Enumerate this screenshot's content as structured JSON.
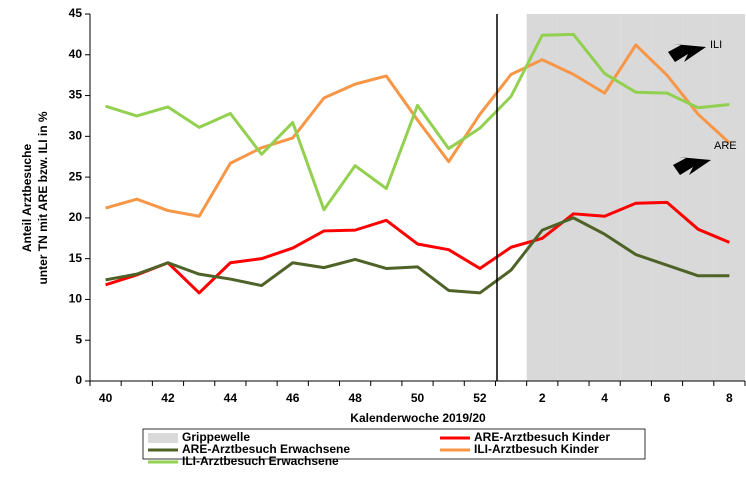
{
  "chart_data": {
    "type": "line",
    "y_label_lines": [
      "Anteil Arztbesuche",
      "unter TN mit ARE bzw. ILI in %"
    ],
    "x_label": "Kalenderwoche 2019/20",
    "categories": [
      40,
      null,
      42,
      null,
      44,
      null,
      46,
      null,
      48,
      null,
      50,
      null,
      52,
      null,
      2,
      null,
      4,
      null,
      6,
      null,
      8
    ],
    "ylim": [
      0,
      45
    ],
    "yticks": [
      0,
      5,
      10,
      15,
      20,
      25,
      30,
      35,
      40,
      45
    ],
    "grid": false,
    "legend": "bottom",
    "series": [
      {
        "name": "Grippewelle",
        "type": "area",
        "color": "#d9d9d9",
        "values": [
          null,
          null,
          null,
          null,
          null,
          null,
          null,
          null,
          null,
          null,
          null,
          null,
          null,
          null,
          45,
          45,
          45,
          45,
          45,
          45,
          45
        ]
      },
      {
        "name": "ARE-Arztbesuch Kinder",
        "type": "line",
        "color": "#ff0000",
        "values": [
          11.8,
          13.0,
          14.5,
          10.8,
          14.5,
          15.0,
          16.3,
          18.4,
          18.5,
          19.7,
          16.8,
          16.1,
          13.8,
          16.4,
          17.5,
          20.5,
          20.2,
          21.8,
          21.9,
          18.6,
          17.0
        ]
      },
      {
        "name": "ARE-Arztbesuch Erwachsene",
        "type": "line",
        "color": "#4f6228",
        "values": [
          12.4,
          13.1,
          14.5,
          13.1,
          12.5,
          11.7,
          14.5,
          13.9,
          14.9,
          13.8,
          14.0,
          11.1,
          10.8,
          13.6,
          18.5,
          20.0,
          18.0,
          15.5,
          14.2,
          12.9,
          12.9
        ]
      },
      {
        "name": "ILI-Arztbesuch Kinder",
        "type": "line",
        "color": "#f79646",
        "values": [
          21.2,
          22.3,
          20.9,
          20.2,
          26.7,
          28.6,
          29.8,
          34.7,
          36.4,
          37.4,
          32.0,
          26.9,
          32.7,
          37.6,
          39.4,
          37.6,
          35.3,
          41.2,
          37.5,
          32.7,
          29.2
        ]
      },
      {
        "name": "ILI-Arztbesuch Erwachsene",
        "type": "line",
        "color": "#92d050",
        "values": [
          33.7,
          32.5,
          33.6,
          31.1,
          32.8,
          27.8,
          31.7,
          21.0,
          26.4,
          23.6,
          33.8,
          28.5,
          31.0,
          34.9,
          42.4,
          42.5,
          37.7,
          35.4,
          35.3,
          33.5,
          33.9
        ]
      }
    ],
    "annotations": [
      "ILI",
      "ARE"
    ]
  }
}
